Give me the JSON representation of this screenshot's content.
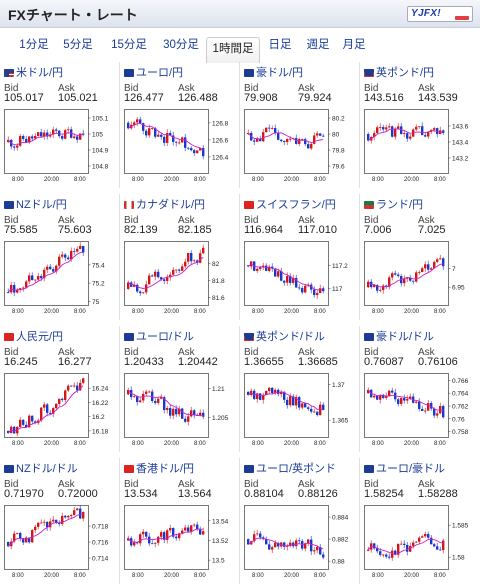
{
  "header": {
    "title": "FXチャート・レート",
    "logo": "YJFX!"
  },
  "tabs": [
    "1分足",
    "5分足",
    "15分足",
    "30分足",
    "1時間足",
    "日足",
    "週足",
    "月足"
  ],
  "selected_tab": 4,
  "labels": {
    "bid": "Bid",
    "ask": "Ask"
  },
  "x_ticks": [
    "8:00",
    "20:00",
    "8:00"
  ],
  "colors": {
    "up": "#d01818",
    "down": "#1838c8",
    "ma": "#cc1fcc",
    "link": "#1a3c9a"
  },
  "pairs": [
    {
      "name": "米ドル/円",
      "flag": "us-flag-icon",
      "bid": "105.017",
      "ask": "105.021",
      "ticks": [
        "105.1",
        "105",
        "104.9",
        "104.8"
      ],
      "tickv": [
        105.1,
        105,
        104.9,
        104.8
      ],
      "ylim": [
        104.75,
        105.15
      ],
      "start": 104.95,
      "end": 105.02,
      "trend": 0.05
    },
    {
      "name": "ユーロ/円",
      "flag": "eu-flag-icon",
      "bid": "126.477",
      "ask": "126.488",
      "ticks": [
        "126.8",
        "126.6",
        "126.4"
      ],
      "tickv": [
        126.8,
        126.6,
        126.4
      ],
      "ylim": [
        126.2,
        126.95
      ],
      "start": 126.8,
      "end": 126.48,
      "trend": -0.3
    },
    {
      "name": "豪ドル/円",
      "flag": "au-flag-icon",
      "bid": "79.908",
      "ask": "79.924",
      "ticks": [
        "80.2",
        "80",
        "79.8",
        "79.6"
      ],
      "tickv": [
        80.2,
        80,
        79.8,
        79.6
      ],
      "ylim": [
        79.5,
        80.3
      ],
      "start": 80.0,
      "end": 79.91,
      "trend": -0.1
    },
    {
      "name": "英ポンド/円",
      "flag": "gb-flag-icon",
      "bid": "143.516",
      "ask": "143.539",
      "ticks": [
        "143.6",
        "143.4",
        "143.2"
      ],
      "tickv": [
        143.6,
        143.4,
        143.2
      ],
      "ylim": [
        143.0,
        143.8
      ],
      "start": 143.5,
      "end": 143.52,
      "trend": 0.0
    },
    {
      "name": "NZドル/円",
      "flag": "nz-flag-icon",
      "bid": "75.585",
      "ask": "75.603",
      "ticks": [
        "75.4",
        "75.2",
        "75"
      ],
      "tickv": [
        75.4,
        75.2,
        75
      ],
      "ylim": [
        74.95,
        75.65
      ],
      "start": 75.1,
      "end": 75.59,
      "trend": 0.25
    },
    {
      "name": "カナダドル/円",
      "flag": "ca-flag-icon",
      "bid": "82.139",
      "ask": "82.185",
      "ticks": [
        "82",
        "81.8",
        "81.6"
      ],
      "tickv": [
        82,
        81.8,
        81.6
      ],
      "ylim": [
        81.5,
        82.25
      ],
      "start": 81.7,
      "end": 82.14,
      "trend": 0.35
    },
    {
      "name": "スイスフラン/円",
      "flag": "ch-flag-icon",
      "bid": "116.964",
      "ask": "117.010",
      "ticks": [
        "117.2",
        "117"
      ],
      "tickv": [
        117.2,
        117
      ],
      "ylim": [
        116.85,
        117.4
      ],
      "start": 117.2,
      "end": 116.96,
      "trend": -0.2
    },
    {
      "name": "ランド/円",
      "flag": "za-flag-icon",
      "bid": "7.006",
      "ask": "7.025",
      "ticks": [
        "7",
        "6.95"
      ],
      "tickv": [
        7,
        6.95
      ],
      "ylim": [
        6.9,
        7.07
      ],
      "start": 6.95,
      "end": 7.01,
      "trend": 0.05
    },
    {
      "name": "人民元/円",
      "flag": "cn-flag-icon",
      "bid": "16.245",
      "ask": "16.277",
      "ticks": [
        "16.24",
        "16.22",
        "16.2",
        "16.18"
      ],
      "tickv": [
        16.24,
        16.22,
        16.2,
        16.18
      ],
      "ylim": [
        16.17,
        16.26
      ],
      "start": 16.18,
      "end": 16.245,
      "trend": 0.06
    },
    {
      "name": "ユーロ/ドル",
      "flag": "eu-flag-icon",
      "bid": "1.20433",
      "ask": "1.20442",
      "ticks": [
        "1.21",
        "1.205"
      ],
      "tickv": [
        1.21,
        1.205
      ],
      "ylim": [
        1.2015,
        1.2125
      ],
      "start": 1.209,
      "end": 1.2043,
      "trend": -0.004
    },
    {
      "name": "英ポンド/ドル",
      "flag": "gb-flag-icon",
      "bid": "1.36655",
      "ask": "1.36685",
      "ticks": [
        "1.37",
        "1.365"
      ],
      "tickv": [
        1.37,
        1.365
      ],
      "ylim": [
        1.3625,
        1.3715
      ],
      "start": 1.369,
      "end": 1.3666,
      "trend": -0.002
    },
    {
      "name": "豪ドル/ドル",
      "flag": "au-flag-icon",
      "bid": "0.76087",
      "ask": "0.76106",
      "ticks": [
        "0.766",
        "0.764",
        "0.762",
        "0.76",
        "0.758"
      ],
      "tickv": [
        0.766,
        0.764,
        0.762,
        0.76,
        0.758
      ],
      "ylim": [
        0.757,
        0.767
      ],
      "start": 0.764,
      "end": 0.7609,
      "trend": -0.003
    },
    {
      "name": "NZドル/ドル",
      "flag": "nz-flag-icon",
      "bid": "0.71970",
      "ask": "0.72000",
      "ticks": [
        "0.718",
        "0.716",
        "0.714"
      ],
      "tickv": [
        0.718,
        0.716,
        0.714
      ],
      "ylim": [
        0.7125,
        0.7205
      ],
      "start": 0.716,
      "end": 0.7197,
      "trend": 0.003
    },
    {
      "name": "香港ドル/円",
      "flag": "hk-flag-icon",
      "bid": "13.534",
      "ask": "13.564",
      "ticks": [
        "13.54",
        "13.52",
        "13.5"
      ],
      "tickv": [
        13.54,
        13.52,
        13.5
      ],
      "ylim": [
        13.49,
        13.555
      ],
      "start": 13.52,
      "end": 13.534,
      "trend": 0.01
    },
    {
      "name": "ユーロ/英ポンド",
      "flag": "eu-flag-icon",
      "bid": "0.88104",
      "ask": "0.88126",
      "ticks": [
        "0.884",
        "0.882",
        "0.88"
      ],
      "tickv": [
        0.884,
        0.882,
        0.88
      ],
      "ylim": [
        0.8792,
        0.885
      ],
      "start": 0.882,
      "end": 0.881,
      "trend": -0.001
    },
    {
      "name": "ユーロ/豪ドル",
      "flag": "eu-flag-icon",
      "bid": "1.58254",
      "ask": "1.58288",
      "ticks": [
        "1.585",
        "1.58"
      ],
      "tickv": [
        1.585,
        1.58
      ],
      "ylim": [
        1.578,
        1.588
      ],
      "start": 1.581,
      "end": 1.5825,
      "trend": 0.001
    }
  ]
}
